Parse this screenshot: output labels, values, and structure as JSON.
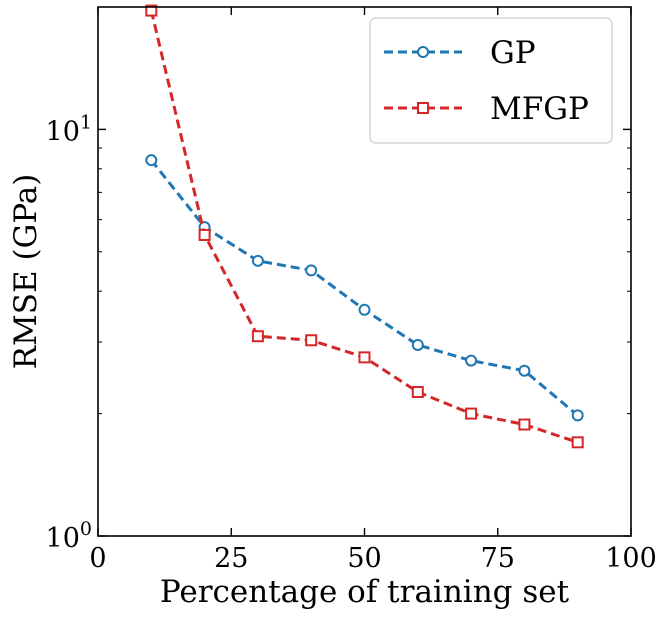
{
  "chart_data": {
    "type": "line",
    "title": "",
    "xlabel": "Percentage of training set",
    "ylabel": "RMSE (GPa)",
    "xlim": [
      0,
      100
    ],
    "ylim": [
      1,
      20
    ],
    "yscale": "log",
    "x_ticks": [
      0,
      25,
      50,
      75,
      100
    ],
    "x_tick_labels": [
      "0",
      "25",
      "50",
      "75",
      "100"
    ],
    "y_ticks": [
      1,
      10
    ],
    "y_tick_label_base": "10",
    "y_tick_label_exps": [
      "0",
      "1"
    ],
    "grid": false,
    "legend_position": "top-right",
    "x": [
      10,
      20,
      30,
      40,
      50,
      60,
      70,
      80,
      90
    ],
    "series": [
      {
        "name": "GP",
        "color": "#1f77b4",
        "marker": "circle",
        "linestyle": "dashed",
        "values": [
          8.4,
          5.75,
          4.75,
          4.5,
          3.6,
          2.95,
          2.7,
          2.55,
          1.98
        ]
      },
      {
        "name": "MFGP",
        "color": "#d62728",
        "marker": "square",
        "linestyle": "dashed",
        "values": [
          19.6,
          5.5,
          3.1,
          3.03,
          2.75,
          2.26,
          2.0,
          1.88,
          1.7
        ]
      }
    ]
  }
}
